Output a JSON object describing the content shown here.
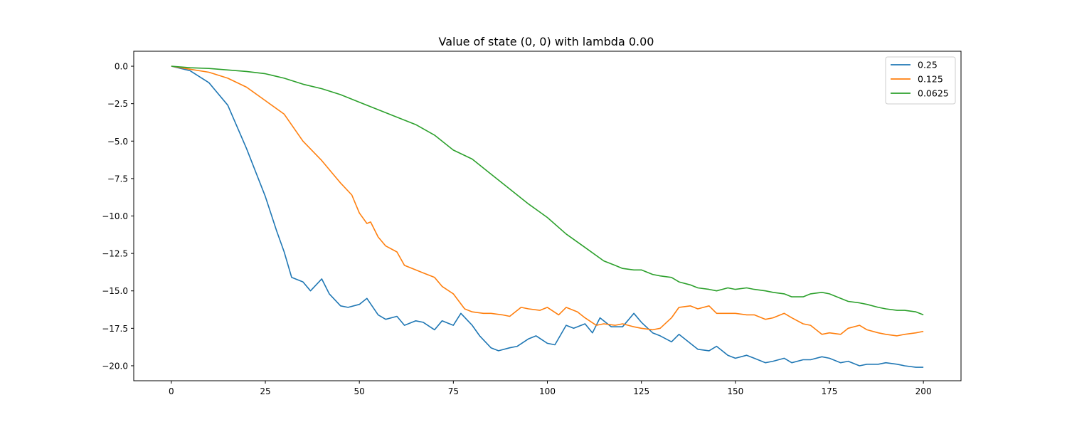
{
  "chart_data": {
    "type": "line",
    "title": "Value of state (0, 0) with lambda 0.00",
    "xlabel": "",
    "ylabel": "",
    "xlim": [
      -10,
      210
    ],
    "ylim": [
      -21,
      1
    ],
    "x_ticks": [
      0,
      25,
      50,
      75,
      100,
      125,
      150,
      175,
      200
    ],
    "y_ticks": [
      0.0,
      -2.5,
      -5.0,
      -7.5,
      -10.0,
      -12.5,
      -15.0,
      -17.5,
      -20.0
    ],
    "x_tick_labels": [
      "0",
      "25",
      "50",
      "75",
      "100",
      "125",
      "150",
      "175",
      "200"
    ],
    "y_tick_labels": [
      "0.0",
      "−2.5",
      "−5.0",
      "−7.5",
      "−10.0",
      "−12.5",
      "−15.0",
      "−17.5",
      "−20.0"
    ],
    "grid": false,
    "legend_position": "top-right",
    "series": [
      {
        "name": "0.25",
        "color": "#1f77b4",
        "x": [
          0,
          5,
          10,
          15,
          20,
          25,
          28,
          30,
          32,
          35,
          37,
          40,
          42,
          45,
          47,
          50,
          52,
          55,
          57,
          60,
          62,
          65,
          67,
          70,
          72,
          75,
          77,
          80,
          82,
          85,
          87,
          90,
          92,
          95,
          97,
          100,
          102,
          105,
          107,
          110,
          112,
          114,
          117,
          120,
          123,
          125,
          128,
          130,
          133,
          135,
          138,
          140,
          143,
          145,
          148,
          150,
          153,
          155,
          158,
          160,
          163,
          165,
          168,
          170,
          173,
          175,
          178,
          180,
          183,
          185,
          188,
          190,
          193,
          195,
          198,
          200
        ],
        "values": [
          0.0,
          -0.3,
          -1.1,
          -2.6,
          -5.5,
          -8.7,
          -11.0,
          -12.4,
          -14.1,
          -14.4,
          -15.0,
          -14.2,
          -15.2,
          -16.0,
          -16.1,
          -15.9,
          -15.5,
          -16.6,
          -16.9,
          -16.7,
          -17.3,
          -17.0,
          -17.1,
          -17.6,
          -17.0,
          -17.3,
          -16.5,
          -17.3,
          -18.0,
          -18.8,
          -19.0,
          -18.8,
          -18.7,
          -18.2,
          -18.0,
          -18.5,
          -18.6,
          -17.3,
          -17.5,
          -17.2,
          -17.8,
          -16.8,
          -17.4,
          -17.4,
          -16.5,
          -17.1,
          -17.8,
          -18.0,
          -18.4,
          -17.9,
          -18.5,
          -18.9,
          -19.0,
          -18.7,
          -19.3,
          -19.5,
          -19.3,
          -19.5,
          -19.8,
          -19.7,
          -19.5,
          -19.8,
          -19.6,
          -19.6,
          -19.4,
          -19.5,
          -19.8,
          -19.7,
          -20.0,
          -19.9,
          -19.9,
          -19.8,
          -19.9,
          -20.0,
          -20.1,
          -20.1
        ]
      },
      {
        "name": "0.125",
        "color": "#ff7f0e",
        "x": [
          0,
          5,
          10,
          15,
          20,
          25,
          30,
          35,
          40,
          43,
          45,
          48,
          50,
          52,
          53,
          55,
          57,
          60,
          62,
          65,
          67,
          70,
          72,
          75,
          78,
          80,
          83,
          85,
          88,
          90,
          93,
          95,
          98,
          100,
          103,
          105,
          108,
          110,
          113,
          115,
          118,
          120,
          123,
          125,
          128,
          130,
          133,
          135,
          138,
          140,
          143,
          145,
          148,
          150,
          153,
          155,
          158,
          160,
          163,
          165,
          168,
          170,
          173,
          175,
          178,
          180,
          183,
          185,
          188,
          190,
          193,
          195,
          198,
          200
        ],
        "values": [
          0.0,
          -0.2,
          -0.4,
          -0.8,
          -1.4,
          -2.3,
          -3.2,
          -5.0,
          -6.3,
          -7.2,
          -7.8,
          -8.6,
          -9.8,
          -10.5,
          -10.4,
          -11.4,
          -12.0,
          -12.4,
          -13.3,
          -13.6,
          -13.8,
          -14.1,
          -14.7,
          -15.2,
          -16.2,
          -16.4,
          -16.5,
          -16.5,
          -16.6,
          -16.7,
          -16.1,
          -16.2,
          -16.3,
          -16.1,
          -16.6,
          -16.1,
          -16.4,
          -16.8,
          -17.3,
          -17.2,
          -17.3,
          -17.2,
          -17.4,
          -17.5,
          -17.6,
          -17.5,
          -16.8,
          -16.1,
          -16.0,
          -16.2,
          -16.0,
          -16.5,
          -16.5,
          -16.5,
          -16.6,
          -16.6,
          -16.9,
          -16.8,
          -16.5,
          -16.8,
          -17.2,
          -17.3,
          -17.9,
          -17.8,
          -17.9,
          -17.5,
          -17.3,
          -17.6,
          -17.8,
          -17.9,
          -18.0,
          -17.9,
          -17.8,
          -17.7
        ]
      },
      {
        "name": "0.0625",
        "color": "#2ca02c",
        "x": [
          0,
          5,
          10,
          15,
          20,
          25,
          30,
          35,
          40,
          45,
          50,
          55,
          60,
          65,
          70,
          75,
          80,
          85,
          90,
          95,
          100,
          105,
          110,
          115,
          118,
          120,
          123,
          125,
          128,
          130,
          133,
          135,
          138,
          140,
          143,
          145,
          148,
          150,
          153,
          155,
          158,
          160,
          163,
          165,
          168,
          170,
          173,
          175,
          178,
          180,
          183,
          185,
          188,
          190,
          193,
          195,
          198,
          200
        ],
        "values": [
          0.0,
          -0.1,
          -0.15,
          -0.25,
          -0.35,
          -0.5,
          -0.8,
          -1.2,
          -1.5,
          -1.9,
          -2.4,
          -2.9,
          -3.4,
          -3.9,
          -4.6,
          -5.6,
          -6.2,
          -7.2,
          -8.2,
          -9.2,
          -10.1,
          -11.2,
          -12.1,
          -13.0,
          -13.3,
          -13.5,
          -13.6,
          -13.6,
          -13.9,
          -14.0,
          -14.1,
          -14.4,
          -14.6,
          -14.8,
          -14.9,
          -15.0,
          -14.8,
          -14.9,
          -14.8,
          -14.9,
          -15.0,
          -15.1,
          -15.2,
          -15.4,
          -15.4,
          -15.2,
          -15.1,
          -15.2,
          -15.5,
          -15.7,
          -15.8,
          -15.9,
          -16.1,
          -16.2,
          -16.3,
          -16.3,
          -16.4,
          -16.6
        ]
      }
    ]
  }
}
